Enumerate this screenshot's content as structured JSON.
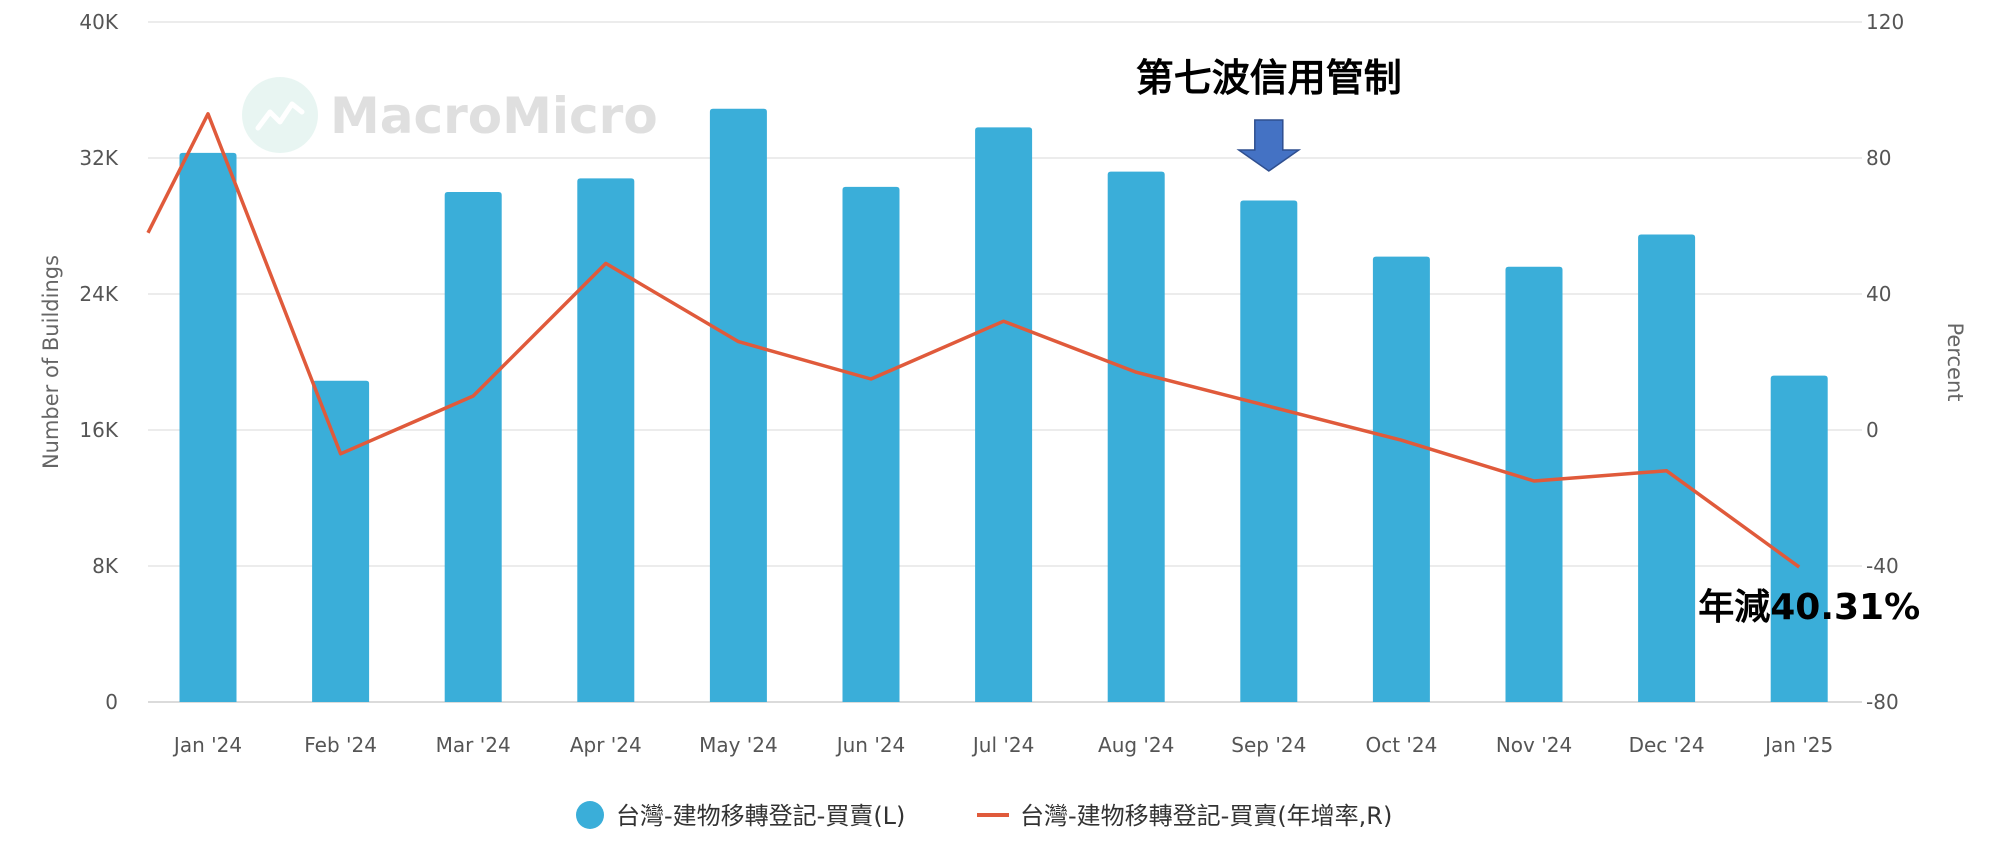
{
  "chart_data": {
    "type": "bar",
    "categories": [
      "Jan '24",
      "Feb '24",
      "Mar '24",
      "Apr '24",
      "May '24",
      "Jun '24",
      "Jul '24",
      "Aug '24",
      "Sep '24",
      "Oct '24",
      "Nov '24",
      "Dec '24",
      "Jan '25"
    ],
    "series": [
      {
        "name": "台灣-建物移轉登記-買賣(L)",
        "type": "bar",
        "axis": "left",
        "color": "#3aaed9",
        "values": [
          32300,
          18900,
          30000,
          30800,
          34900,
          30300,
          33800,
          31200,
          29500,
          26200,
          25600,
          27500,
          19200
        ]
      },
      {
        "name": "台灣-建物移轉登記-買賣(年增率,R)",
        "type": "line",
        "axis": "right",
        "color": "#e05a3b",
        "values": [
          93,
          -7,
          10,
          49,
          26,
          15,
          32,
          17,
          7,
          -3,
          -15,
          -12,
          -40.31
        ]
      }
    ],
    "y_left": {
      "label": "Number of Buildings",
      "lim": [
        0,
        40000
      ],
      "ticks": [
        0,
        8000,
        16000,
        24000,
        32000,
        40000
      ],
      "tick_labels": [
        "0",
        "8K",
        "16K",
        "24K",
        "32K",
        "40K"
      ]
    },
    "y_right": {
      "label": "Percent",
      "lim": [
        -80,
        120
      ],
      "ticks": [
        -80,
        -40,
        0,
        40,
        80,
        120
      ],
      "tick_labels": [
        "-80",
        "-40",
        "0",
        "40",
        "80",
        "120"
      ]
    },
    "line_edge_start_value": 58,
    "grid": true,
    "legend_position": "bottom-center",
    "annotations": [
      {
        "text": "第七波信用管制",
        "category": "Sep '24",
        "arrow": "down",
        "arrow_color": "#4472c4"
      },
      {
        "text": "年減40.31%",
        "category": "Jan '25"
      }
    ],
    "watermark": "MacroMicro"
  }
}
